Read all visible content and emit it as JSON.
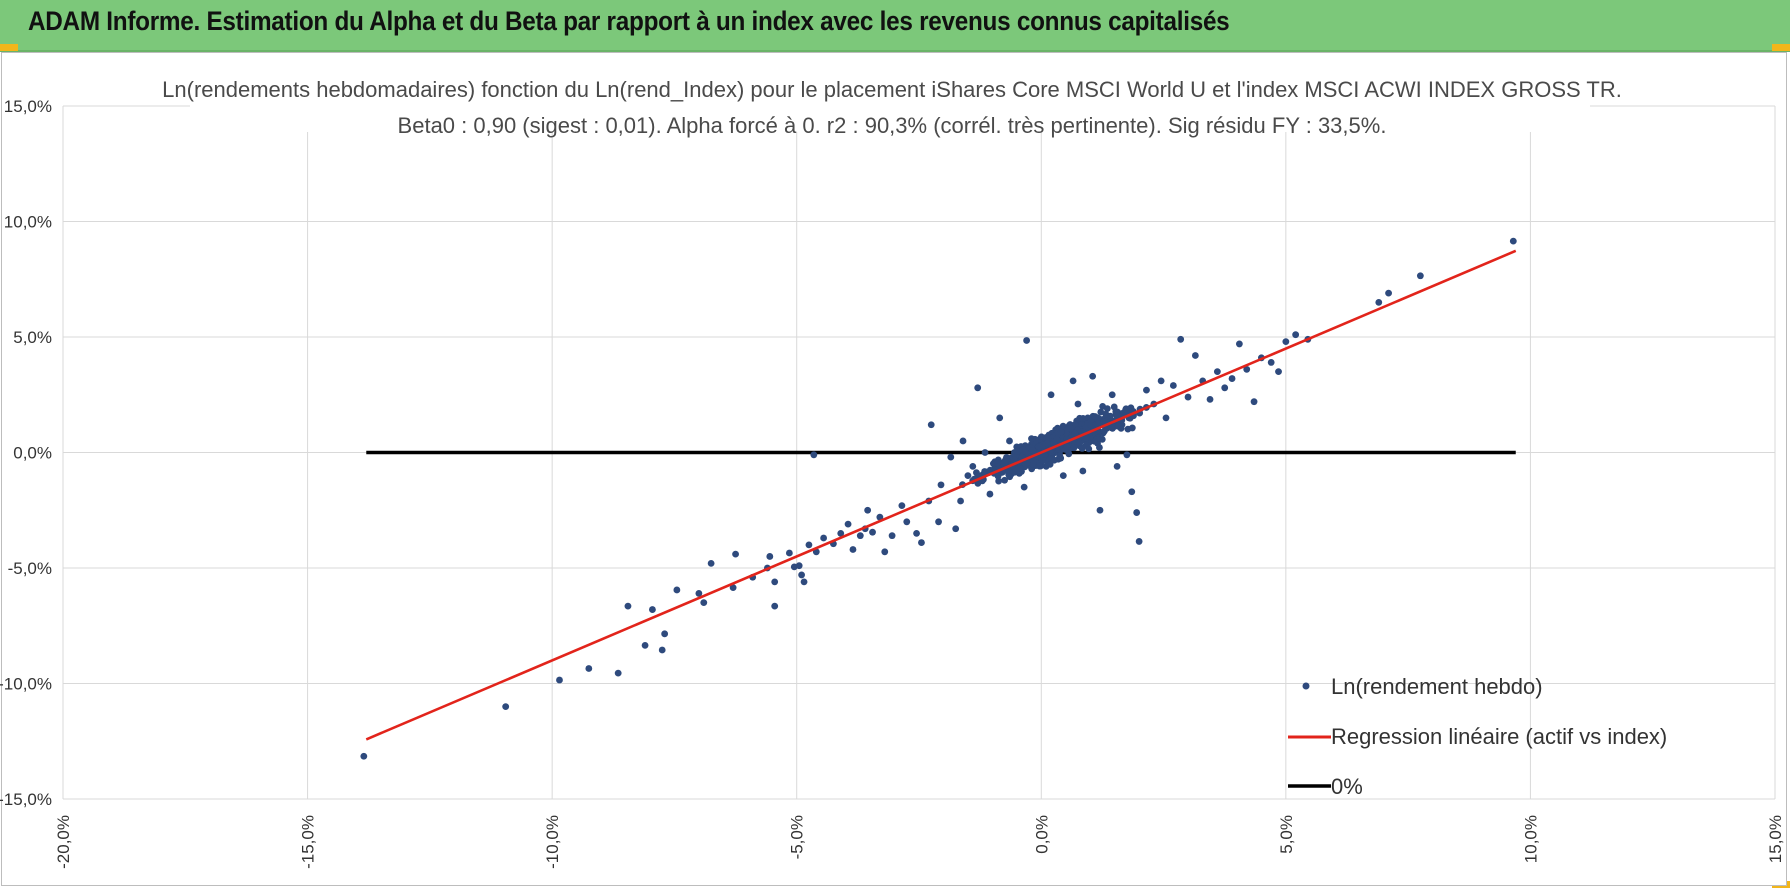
{
  "header": {
    "title": "ADAM Informe. Estimation du Alpha et du Beta par rapport à un index avec les revenus connus capitalisés"
  },
  "colors": {
    "header_bg": "#7cc87a",
    "accent_corner": "#f2b61b",
    "points": "#2e4a7d",
    "regression": "#e2241b",
    "zero_line": "#000000"
  },
  "chart_data": {
    "type": "scatter",
    "title_line1": "Ln(rendements hebdomadaires) fonction du Ln(rend_Index) pour le placement iShares Core MSCI World U et l'index MSCI ACWI INDEX GROSS TR.",
    "title_line2": "Beta0 : 0,90 (sigest : 0,01). Alpha forcé à 0. r2 : 90,3% (corrél. très pertinente). Sig résidu FY : 33,5%.",
    "xlim": [
      -0.2,
      0.15
    ],
    "ylim": [
      -0.15,
      0.15
    ],
    "x_ticks": [
      -0.2,
      -0.15,
      -0.1,
      -0.05,
      0.0,
      0.05,
      0.1,
      0.15
    ],
    "x_tick_labels": [
      "-20,0%",
      "-15,0%",
      "-10,0%",
      "-5,0%",
      "0,0%",
      "5,0%",
      "10,0%",
      "15,0%"
    ],
    "y_ticks": [
      0.15,
      0.1,
      0.05,
      0.0,
      -0.05,
      -0.1,
      -0.15
    ],
    "y_tick_labels": [
      "15,0%",
      "10,0%",
      "5,0%",
      "0,0%",
      "-5,0%",
      "-10,0%",
      "-15,0%"
    ],
    "grid": true,
    "legend_position": "bottom-right",
    "series": [
      {
        "name": "Ln(rendement hebdo)",
        "kind": "scatter",
        "points": [
          [
            -0.1385,
            -0.1315
          ],
          [
            -0.1095,
            -0.11
          ],
          [
            -0.0985,
            -0.0985
          ],
          [
            -0.0925,
            -0.0935
          ],
          [
            -0.0865,
            -0.0955
          ],
          [
            -0.0845,
            -0.0665
          ],
          [
            -0.081,
            -0.0835
          ],
          [
            -0.0795,
            -0.068
          ],
          [
            -0.0775,
            -0.0855
          ],
          [
            -0.077,
            -0.0785
          ],
          [
            -0.0745,
            -0.0595
          ],
          [
            -0.07,
            -0.061
          ],
          [
            -0.069,
            -0.065
          ],
          [
            -0.0675,
            -0.048
          ],
          [
            -0.063,
            -0.0585
          ],
          [
            -0.0625,
            -0.044
          ],
          [
            -0.059,
            -0.054
          ],
          [
            -0.056,
            -0.05
          ],
          [
            -0.0555,
            -0.045
          ],
          [
            -0.0545,
            -0.056
          ],
          [
            -0.0545,
            -0.0665
          ],
          [
            -0.0515,
            -0.0435
          ],
          [
            -0.0505,
            -0.0495
          ],
          [
            -0.0495,
            -0.049
          ],
          [
            -0.049,
            -0.053
          ],
          [
            -0.0485,
            -0.056
          ],
          [
            -0.0475,
            -0.04
          ],
          [
            -0.046,
            -0.043
          ],
          [
            -0.0465,
            -0.001
          ],
          [
            -0.0445,
            -0.037
          ],
          [
            -0.0425,
            -0.0395
          ],
          [
            -0.041,
            -0.035
          ],
          [
            -0.0395,
            -0.031
          ],
          [
            -0.0385,
            -0.042
          ],
          [
            -0.037,
            -0.036
          ],
          [
            -0.036,
            -0.033
          ],
          [
            -0.0355,
            -0.025
          ],
          [
            -0.0345,
            -0.0345
          ],
          [
            -0.033,
            -0.028
          ],
          [
            -0.032,
            -0.043
          ],
          [
            -0.0305,
            -0.036
          ],
          [
            -0.0285,
            -0.023
          ],
          [
            -0.0275,
            -0.03
          ],
          [
            -0.0255,
            -0.035
          ],
          [
            -0.0245,
            -0.039
          ],
          [
            -0.023,
            -0.021
          ],
          [
            -0.0225,
            0.012
          ],
          [
            -0.021,
            -0.03
          ],
          [
            -0.0205,
            -0.014
          ],
          [
            -0.0185,
            -0.002
          ],
          [
            -0.0175,
            -0.033
          ],
          [
            -0.0165,
            -0.021
          ],
          [
            -0.016,
            0.005
          ],
          [
            -0.015,
            -0.01
          ],
          [
            -0.014,
            -0.006
          ],
          [
            -0.013,
            0.028
          ],
          [
            -0.0115,
            0.0
          ],
          [
            -0.0105,
            -0.018
          ],
          [
            -0.0095,
            -0.004
          ],
          [
            -0.0085,
            0.015
          ],
          [
            -0.0075,
            -0.012
          ],
          [
            -0.0065,
            0.005
          ],
          [
            -0.0055,
            0.0
          ],
          [
            -0.0045,
            -0.009
          ],
          [
            -0.0035,
            -0.015
          ],
          [
            -0.003,
            0.0485
          ],
          [
            -0.002,
            0.006
          ],
          [
            -0.001,
            -0.0005
          ],
          [
            0.0,
            0.003
          ],
          [
            0.001,
            -0.006
          ],
          [
            0.002,
            0.025
          ],
          [
            0.003,
            0.008
          ],
          [
            0.0045,
            -0.01
          ],
          [
            0.0055,
            0.001
          ],
          [
            0.0065,
            0.031
          ],
          [
            0.0075,
            0.021
          ],
          [
            0.0085,
            -0.008
          ],
          [
            0.0095,
            0.015
          ],
          [
            0.0105,
            0.033
          ],
          [
            0.0115,
            0.004
          ],
          [
            0.012,
            -0.025
          ],
          [
            0.0135,
            0.019
          ],
          [
            0.0145,
            0.025
          ],
          [
            0.0155,
            -0.006
          ],
          [
            0.0165,
            0.012
          ],
          [
            0.0175,
            -0.001
          ],
          [
            0.0185,
            -0.017
          ],
          [
            0.0195,
            -0.026
          ],
          [
            0.02,
            -0.0385
          ],
          [
            0.0215,
            0.027
          ],
          [
            0.023,
            0.021
          ],
          [
            0.0245,
            0.031
          ],
          [
            0.0255,
            0.015
          ],
          [
            0.027,
            0.029
          ],
          [
            0.0285,
            0.049
          ],
          [
            0.03,
            0.024
          ],
          [
            0.0315,
            0.042
          ],
          [
            0.033,
            0.031
          ],
          [
            0.0345,
            0.023
          ],
          [
            0.036,
            0.035
          ],
          [
            0.0375,
            0.028
          ],
          [
            0.039,
            0.032
          ],
          [
            0.0405,
            0.047
          ],
          [
            0.042,
            0.036
          ],
          [
            0.0435,
            0.022
          ],
          [
            0.045,
            0.041
          ],
          [
            0.047,
            0.039
          ],
          [
            0.0485,
            0.035
          ],
          [
            0.05,
            0.048
          ],
          [
            0.052,
            0.051
          ],
          [
            0.0545,
            0.049
          ],
          [
            0.069,
            0.065
          ],
          [
            0.071,
            0.069
          ],
          [
            0.0775,
            0.0765
          ],
          [
            0.0965,
            0.0915
          ]
        ]
      },
      {
        "name": "Regression linéaire (actif vs index)",
        "kind": "line",
        "beta": 0.9,
        "x_range": [
          -0.138,
          0.097
        ]
      },
      {
        "name": "0%",
        "kind": "line",
        "y": 0.0,
        "x_range": [
          -0.138,
          0.097
        ]
      }
    ]
  }
}
